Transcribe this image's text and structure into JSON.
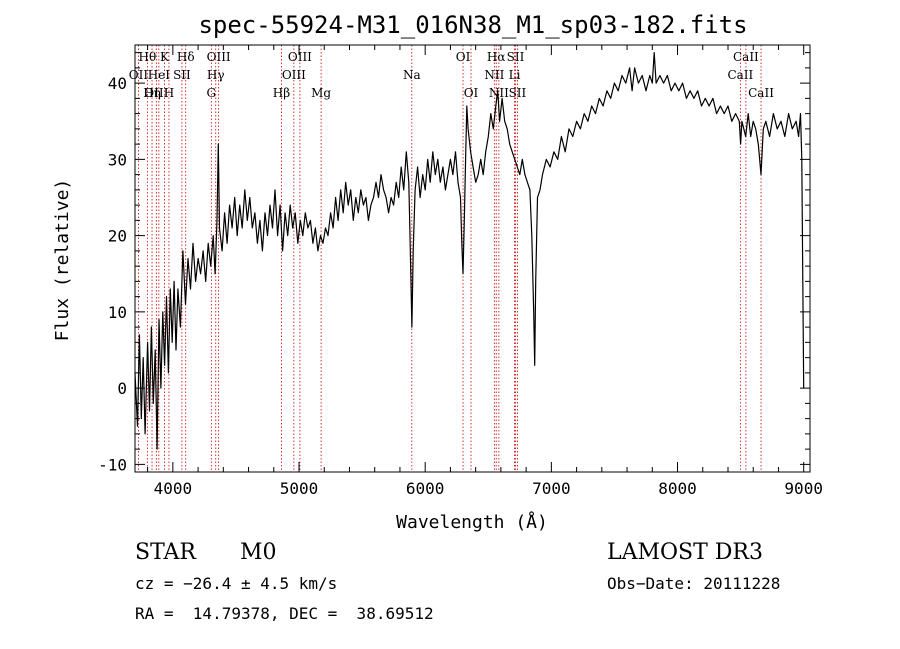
{
  "chart_data": {
    "type": "line",
    "title": "spec-55924-M31_016N38_M1_sp03-182.fits",
    "xlabel": "Wavelength (Å)",
    "ylabel": "Flux (relative)",
    "xlim": [
      3700,
      9050
    ],
    "ylim": [
      -11,
      45
    ],
    "xticks": [
      4000,
      5000,
      6000,
      7000,
      8000,
      9000
    ],
    "yticks": [
      -10,
      0,
      10,
      20,
      30,
      40
    ],
    "xtick_labels": [
      "4000",
      "5000",
      "6000",
      "7000",
      "8000",
      "9000"
    ],
    "ytick_labels": [
      "-10",
      "0",
      "10",
      "20",
      "30",
      "40"
    ],
    "series": [
      {
        "name": "flux",
        "points": [
          [
            3700,
            2
          ],
          [
            3720,
            -5
          ],
          [
            3735,
            7
          ],
          [
            3750,
            -4
          ],
          [
            3765,
            4
          ],
          [
            3780,
            -6
          ],
          [
            3800,
            6
          ],
          [
            3815,
            -3
          ],
          [
            3830,
            8
          ],
          [
            3845,
            -2
          ],
          [
            3860,
            5
          ],
          [
            3875,
            -8
          ],
          [
            3890,
            9
          ],
          [
            3905,
            0
          ],
          [
            3920,
            10
          ],
          [
            3935,
            3
          ],
          [
            3950,
            12
          ],
          [
            3965,
            2
          ],
          [
            3980,
            13
          ],
          [
            3995,
            6
          ],
          [
            4010,
            14
          ],
          [
            4025,
            5
          ],
          [
            4040,
            13
          ],
          [
            4060,
            8
          ],
          [
            4080,
            18
          ],
          [
            4100,
            11
          ],
          [
            4120,
            17
          ],
          [
            4140,
            13
          ],
          [
            4160,
            19
          ],
          [
            4180,
            14
          ],
          [
            4200,
            17
          ],
          [
            4220,
            15
          ],
          [
            4240,
            18
          ],
          [
            4260,
            14
          ],
          [
            4280,
            19
          ],
          [
            4300,
            16
          ],
          [
            4320,
            20
          ],
          [
            4335,
            15
          ],
          [
            4350,
            22
          ],
          [
            4360,
            32
          ],
          [
            4370,
            21
          ],
          [
            4390,
            18
          ],
          [
            4410,
            23
          ],
          [
            4430,
            19
          ],
          [
            4450,
            24
          ],
          [
            4470,
            21
          ],
          [
            4490,
            25
          ],
          [
            4510,
            20
          ],
          [
            4530,
            24
          ],
          [
            4550,
            21
          ],
          [
            4570,
            26
          ],
          [
            4590,
            22
          ],
          [
            4610,
            25
          ],
          [
            4630,
            21
          ],
          [
            4650,
            23
          ],
          [
            4670,
            19
          ],
          [
            4690,
            22
          ],
          [
            4710,
            18
          ],
          [
            4730,
            23
          ],
          [
            4750,
            20
          ],
          [
            4770,
            24
          ],
          [
            4790,
            21
          ],
          [
            4810,
            26
          ],
          [
            4830,
            20
          ],
          [
            4850,
            24
          ],
          [
            4870,
            18
          ],
          [
            4890,
            23
          ],
          [
            4910,
            20
          ],
          [
            4930,
            24
          ],
          [
            4950,
            21
          ],
          [
            4970,
            23
          ],
          [
            4990,
            19
          ],
          [
            5010,
            22
          ],
          [
            5030,
            20
          ],
          [
            5050,
            23
          ],
          [
            5070,
            21
          ],
          [
            5090,
            22
          ],
          [
            5110,
            19
          ],
          [
            5130,
            21
          ],
          [
            5150,
            18
          ],
          [
            5170,
            20
          ],
          [
            5190,
            19
          ],
          [
            5210,
            21
          ],
          [
            5230,
            20
          ],
          [
            5250,
            23
          ],
          [
            5270,
            21
          ],
          [
            5290,
            25
          ],
          [
            5310,
            22
          ],
          [
            5330,
            26
          ],
          [
            5350,
            23
          ],
          [
            5370,
            27
          ],
          [
            5390,
            24
          ],
          [
            5410,
            26
          ],
          [
            5430,
            22
          ],
          [
            5450,
            25
          ],
          [
            5470,
            23
          ],
          [
            5490,
            26
          ],
          [
            5510,
            24
          ],
          [
            5530,
            25
          ],
          [
            5550,
            22
          ],
          [
            5570,
            24
          ],
          [
            5590,
            25
          ],
          [
            5610,
            27
          ],
          [
            5630,
            25
          ],
          [
            5650,
            28
          ],
          [
            5670,
            26
          ],
          [
            5690,
            25
          ],
          [
            5710,
            23
          ],
          [
            5730,
            25
          ],
          [
            5750,
            24
          ],
          [
            5770,
            27
          ],
          [
            5790,
            25
          ],
          [
            5810,
            29
          ],
          [
            5830,
            26
          ],
          [
            5850,
            31
          ],
          [
            5870,
            27
          ],
          [
            5880,
            20
          ],
          [
            5895,
            8
          ],
          [
            5905,
            18
          ],
          [
            5920,
            26
          ],
          [
            5940,
            29
          ],
          [
            5960,
            25
          ],
          [
            5980,
            28
          ],
          [
            6000,
            26
          ],
          [
            6020,
            30
          ],
          [
            6040,
            27
          ],
          [
            6060,
            31
          ],
          [
            6080,
            28
          ],
          [
            6100,
            30
          ],
          [
            6120,
            27
          ],
          [
            6140,
            29
          ],
          [
            6160,
            26
          ],
          [
            6180,
            28
          ],
          [
            6200,
            30
          ],
          [
            6220,
            28
          ],
          [
            6240,
            31
          ],
          [
            6260,
            27
          ],
          [
            6280,
            25
          ],
          [
            6290,
            19
          ],
          [
            6300,
            15
          ],
          [
            6310,
            22
          ],
          [
            6320,
            30
          ],
          [
            6330,
            37
          ],
          [
            6340,
            34
          ],
          [
            6360,
            31
          ],
          [
            6380,
            29
          ],
          [
            6400,
            27
          ],
          [
            6420,
            28
          ],
          [
            6440,
            30
          ],
          [
            6460,
            28
          ],
          [
            6480,
            31
          ],
          [
            6500,
            33
          ],
          [
            6520,
            36
          ],
          [
            6540,
            34
          ],
          [
            6560,
            37
          ],
          [
            6575,
            39
          ],
          [
            6590,
            35
          ],
          [
            6610,
            38
          ],
          [
            6630,
            35
          ],
          [
            6650,
            34
          ],
          [
            6670,
            32
          ],
          [
            6690,
            31
          ],
          [
            6710,
            30
          ],
          [
            6730,
            29
          ],
          [
            6750,
            28
          ],
          [
            6770,
            30
          ],
          [
            6790,
            28
          ],
          [
            6810,
            27
          ],
          [
            6830,
            26
          ],
          [
            6845,
            20
          ],
          [
            6860,
            10
          ],
          [
            6868,
            3
          ],
          [
            6876,
            14
          ],
          [
            6890,
            25
          ],
          [
            6910,
            26
          ],
          [
            6930,
            28
          ],
          [
            6960,
            30
          ],
          [
            6990,
            29
          ],
          [
            7020,
            31
          ],
          [
            7050,
            30
          ],
          [
            7080,
            33
          ],
          [
            7110,
            31
          ],
          [
            7140,
            34
          ],
          [
            7170,
            33
          ],
          [
            7200,
            35
          ],
          [
            7230,
            34
          ],
          [
            7260,
            36
          ],
          [
            7290,
            35
          ],
          [
            7320,
            37
          ],
          [
            7350,
            36
          ],
          [
            7380,
            38
          ],
          [
            7410,
            37
          ],
          [
            7440,
            39
          ],
          [
            7470,
            38
          ],
          [
            7500,
            40
          ],
          [
            7530,
            39
          ],
          [
            7560,
            41
          ],
          [
            7590,
            40
          ],
          [
            7620,
            42
          ],
          [
            7640,
            39
          ],
          [
            7660,
            42
          ],
          [
            7690,
            40
          ],
          [
            7720,
            41
          ],
          [
            7750,
            39
          ],
          [
            7780,
            41
          ],
          [
            7800,
            40
          ],
          [
            7815,
            44
          ],
          [
            7830,
            40
          ],
          [
            7860,
            41
          ],
          [
            7890,
            40
          ],
          [
            7920,
            41
          ],
          [
            7950,
            39
          ],
          [
            7980,
            40
          ],
          [
            8010,
            39
          ],
          [
            8040,
            40
          ],
          [
            8070,
            38
          ],
          [
            8100,
            39
          ],
          [
            8130,
            38
          ],
          [
            8160,
            39
          ],
          [
            8190,
            37
          ],
          [
            8220,
            38
          ],
          [
            8250,
            37
          ],
          [
            8280,
            38
          ],
          [
            8310,
            36
          ],
          [
            8340,
            37
          ],
          [
            8370,
            36
          ],
          [
            8400,
            37
          ],
          [
            8430,
            35
          ],
          [
            8460,
            36
          ],
          [
            8490,
            35
          ],
          [
            8500,
            32
          ],
          [
            8510,
            35
          ],
          [
            8540,
            33
          ],
          [
            8560,
            36
          ],
          [
            8580,
            33
          ],
          [
            8600,
            35
          ],
          [
            8620,
            34
          ],
          [
            8640,
            32
          ],
          [
            8662,
            28
          ],
          [
            8680,
            34
          ],
          [
            8700,
            35
          ],
          [
            8730,
            33
          ],
          [
            8760,
            36
          ],
          [
            8790,
            34
          ],
          [
            8820,
            35
          ],
          [
            8850,
            33
          ],
          [
            8880,
            36
          ],
          [
            8910,
            34
          ],
          [
            8940,
            35
          ],
          [
            8960,
            33
          ],
          [
            8975,
            36
          ],
          [
            8985,
            30
          ],
          [
            8993,
            14
          ],
          [
            9000,
            0
          ]
        ]
      }
    ],
    "line_markers": [
      {
        "label": "Hθ",
        "x": 3798,
        "row": 0
      },
      {
        "label": "OII",
        "x": 3727,
        "row": 1
      },
      {
        "label": "OIII",
        "x": 3869,
        "row": 2
      },
      {
        "label": "K",
        "x": 3934,
        "row": 0
      },
      {
        "label": "HeI",
        "x": 3889,
        "row": 1
      },
      {
        "label": "Hη",
        "x": 3835,
        "row": 2
      },
      {
        "label": "SII",
        "x": 4072,
        "row": 1
      },
      {
        "label": "H",
        "x": 3969,
        "row": 2
      },
      {
        "label": "Hδ",
        "x": 4102,
        "row": 0
      },
      {
        "label": "OIII",
        "x": 4363,
        "row": 0
      },
      {
        "label": "Hγ",
        "x": 4340,
        "row": 1
      },
      {
        "label": "G",
        "x": 4305,
        "row": 2
      },
      {
        "label": "OIII",
        "x": 5007,
        "row": 0
      },
      {
        "label": "OIII",
        "x": 4959,
        "row": 1
      },
      {
        "label": "Hβ",
        "x": 4861,
        "row": 2
      },
      {
        "label": "Mg",
        "x": 5175,
        "row": 2
      },
      {
        "label": "Na",
        "x": 5894,
        "row": 1
      },
      {
        "label": "OI",
        "x": 6300,
        "row": 0
      },
      {
        "label": "OI",
        "x": 6363,
        "row": 2
      },
      {
        "label": "Hα",
        "x": 6563,
        "row": 0
      },
      {
        "label": "SII",
        "x": 6716,
        "row": 0
      },
      {
        "label": "NII",
        "x": 6548,
        "row": 1
      },
      {
        "label": "Li",
        "x": 6708,
        "row": 1
      },
      {
        "label": "NII",
        "x": 6584,
        "row": 2
      },
      {
        "label": "SII",
        "x": 6731,
        "row": 2
      },
      {
        "label": "CaII",
        "x": 8542,
        "row": 0
      },
      {
        "label": "CaII",
        "x": 8498,
        "row": 1
      },
      {
        "label": "CaII",
        "x": 8662,
        "row": 2
      }
    ],
    "marker_color": "#cc0000"
  },
  "info": {
    "class": "STAR",
    "subclass": "M0",
    "survey": "LAMOST DR3",
    "cz": "cz = −26.4 ± 4.5 km/s",
    "obs_date": "Obs−Date: 20111228",
    "coords": "RA =  14.79378, DEC =  38.69512"
  }
}
